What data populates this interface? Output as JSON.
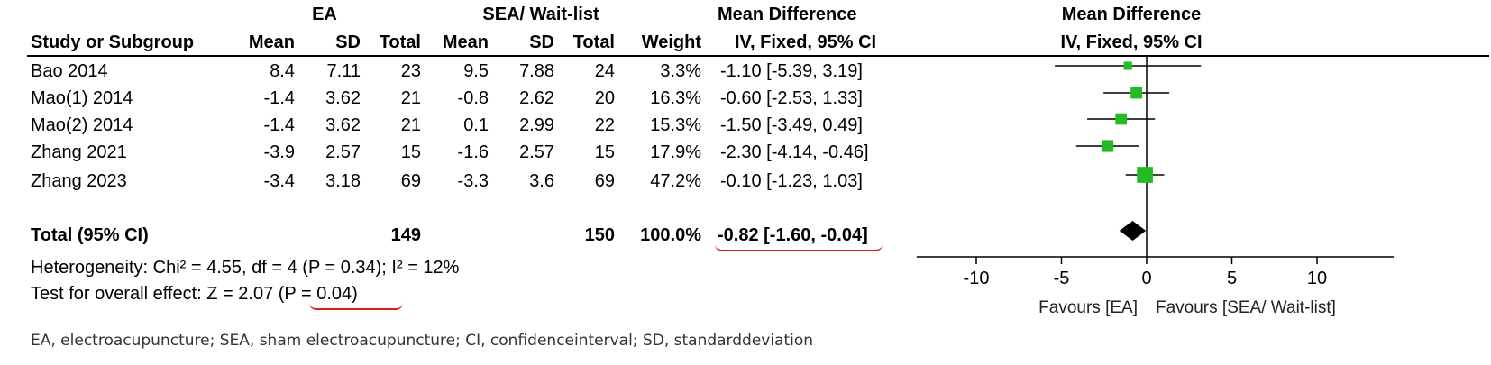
{
  "table": {
    "groups": {
      "exp": "EA",
      "ctrl": "SEA/ Wait-list",
      "md": "Mean Difference"
    },
    "headers": {
      "study": "Study or Subgroup",
      "mean": "Mean",
      "sd": "SD",
      "total": "Total",
      "weight": "Weight",
      "method": "IV, Fixed, 95% CI"
    },
    "studies": [
      {
        "name": "Bao 2014",
        "e_mean": "8.4",
        "e_sd": "7.11",
        "e_total": "23",
        "c_mean": "9.5",
        "c_sd": "7.88",
        "c_total": "24",
        "weight": "3.3%",
        "ci": "-1.10 [-5.39, 3.19]"
      },
      {
        "name": "Mao(1) 2014",
        "e_mean": "-1.4",
        "e_sd": "3.62",
        "e_total": "21",
        "c_mean": "-0.8",
        "c_sd": "2.62",
        "c_total": "20",
        "weight": "16.3%",
        "ci": "-0.60 [-2.53, 1.33]"
      },
      {
        "name": "Mao(2) 2014",
        "e_mean": "-1.4",
        "e_sd": "3.62",
        "e_total": "21",
        "c_mean": "0.1",
        "c_sd": "2.99",
        "c_total": "22",
        "weight": "15.3%",
        "ci": "-1.50 [-3.49, 0.49]"
      },
      {
        "name": "Zhang 2021",
        "e_mean": "-3.9",
        "e_sd": "2.57",
        "e_total": "15",
        "c_mean": "-1.6",
        "c_sd": "2.57",
        "c_total": "15",
        "weight": "17.9%",
        "ci": "-2.30 [-4.14, -0.46]"
      },
      {
        "name": "Zhang 2023",
        "e_mean": "-3.4",
        "e_sd": "3.18",
        "e_total": "69",
        "c_mean": "-3.3",
        "c_sd": "3.6",
        "c_total": "69",
        "weight": "47.2%",
        "ci": "-0.10 [-1.23, 1.03]"
      }
    ],
    "total": {
      "label": "Total (95% CI)",
      "e_total": "149",
      "c_total": "150",
      "weight": "100.0%",
      "ci": "-0.82 [-1.60, -0.04]"
    },
    "heterogeneity": "Heterogeneity: Chi² = 4.55, df = 4 (P = 0.34); I² = 12%",
    "overall_prefix": "Test for overall effect: Z = 2.07 ",
    "overall_p": "(P = 0.04)"
  },
  "footnote": "EA, electroacupuncture; SEA, sham electroacupuncture; CI, confidenceinterval; SD, standarddeviation",
  "chart_data": {
    "type": "scatter",
    "title": "Mean Difference",
    "subtitle": "IV, Fixed, 95% CI",
    "xlabel_left": "Favours [EA]",
    "xlabel_right": "Favours [SEA/ Wait-list]",
    "xlim": [
      -13.5,
      14.5
    ],
    "xticks": [
      -10,
      -5,
      0,
      5,
      10
    ],
    "marker_color": "#22bb22",
    "diamond_color": "#000000",
    "points": [
      {
        "study": "Bao 2014",
        "md": -1.1,
        "lo": -5.39,
        "hi": 3.19,
        "weight": 3.3
      },
      {
        "study": "Mao(1) 2014",
        "md": -0.6,
        "lo": -2.53,
        "hi": 1.33,
        "weight": 16.3
      },
      {
        "study": "Mao(2) 2014",
        "md": -1.5,
        "lo": -3.49,
        "hi": 0.49,
        "weight": 15.3
      },
      {
        "study": "Zhang 2021",
        "md": -2.3,
        "lo": -4.14,
        "hi": -0.46,
        "weight": 17.9
      },
      {
        "study": "Zhang 2023",
        "md": -0.1,
        "lo": -1.23,
        "hi": 1.03,
        "weight": 47.2
      }
    ],
    "pooled": {
      "md": -0.82,
      "lo": -1.6,
      "hi": -0.04
    }
  }
}
